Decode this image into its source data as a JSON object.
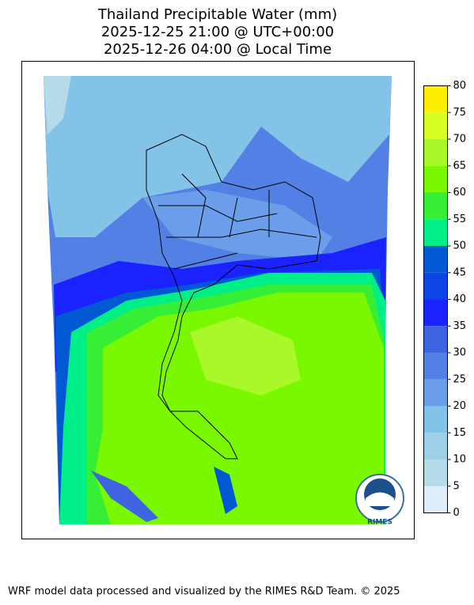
{
  "title": [
    "Thailand Precipitable Water (mm)",
    "2025-12-25 21:00 @ UTC+00:00",
    "2025-12-26 04:00 @ Local Time"
  ],
  "colorbar": {
    "ticks": [
      0,
      5,
      10,
      15,
      20,
      25,
      30,
      35,
      40,
      45,
      50,
      55,
      60,
      65,
      70,
      75,
      80
    ],
    "colors": [
      "#deedf7",
      "#b5dbe9",
      "#9dd0e6",
      "#84c3e8",
      "#6b9eea",
      "#5380e4",
      "#3f64e2",
      "#1a22ff",
      "#0d44e6",
      "#0058d2",
      "#00ee88",
      "#35ee35",
      "#7af800",
      "#a8f82a",
      "#d8ff22",
      "#ffee00"
    ]
  },
  "logo_text": "RIMES",
  "footer": "WRF model data processed and visualized by the RIMES R&D Team. © 2025"
}
